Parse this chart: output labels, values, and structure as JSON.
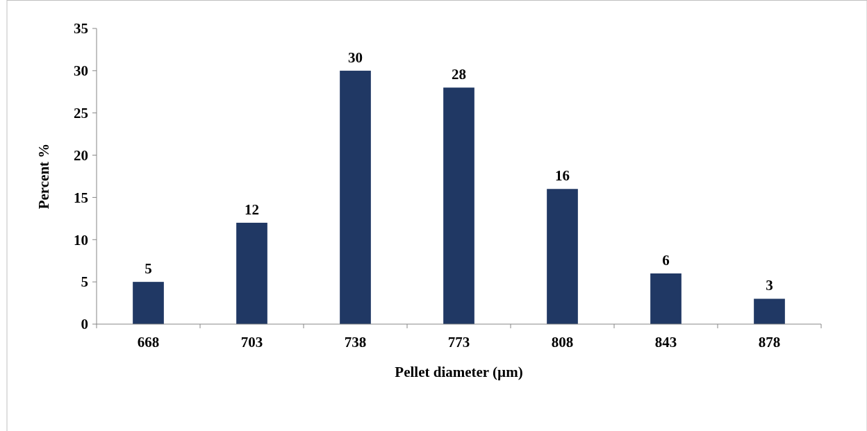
{
  "chart_data": {
    "type": "bar",
    "xlabel": "Pellet diameter (µm)",
    "ylabel": "Percent %",
    "categories": [
      "668",
      "703",
      "738",
      "773",
      "808",
      "843",
      "878"
    ],
    "values": [
      5,
      12,
      30,
      28,
      16,
      6,
      3
    ],
    "color": "#203864",
    "ylim": [
      0,
      35
    ],
    "yticks": [
      0,
      5,
      10,
      15,
      20,
      25,
      30,
      35
    ],
    "grid": false,
    "data_labels": true
  }
}
